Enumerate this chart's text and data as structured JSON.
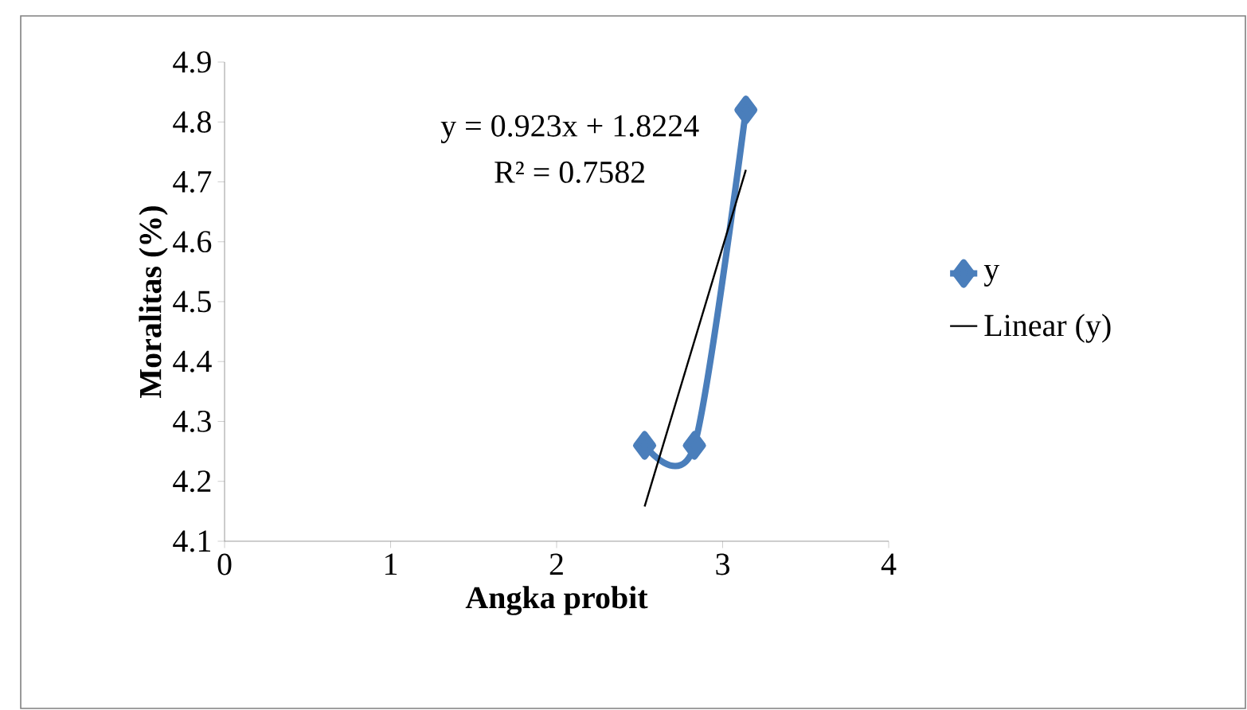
{
  "chart_data": {
    "type": "line",
    "xlabel": "Angka probit",
    "ylabel": "Moralitas (%)",
    "xlim": [
      0,
      4
    ],
    "xticks": [
      0,
      1,
      2,
      3,
      4
    ],
    "ylim": [
      4.1,
      4.9
    ],
    "yticks": [
      4.1,
      4.2,
      4.3,
      4.4,
      4.5,
      4.6,
      4.7,
      4.8,
      4.9
    ],
    "legend": "right",
    "grid": false,
    "series": [
      {
        "name": "y",
        "color": "#4a7ebb",
        "marker": "diamond",
        "x": [
          2.53,
          2.83,
          3.14
        ],
        "values": [
          4.26,
          4.26,
          4.82
        ]
      },
      {
        "name": "Linear (y)",
        "type": "line",
        "color": "#000000",
        "marker": "none",
        "line_style": "solid",
        "x": [
          2.53,
          3.14
        ],
        "values": [
          4.158,
          4.72
        ]
      }
    ],
    "annotations": [
      "y = 0.923x + 1.8224",
      "R² = 0.7582"
    ]
  }
}
